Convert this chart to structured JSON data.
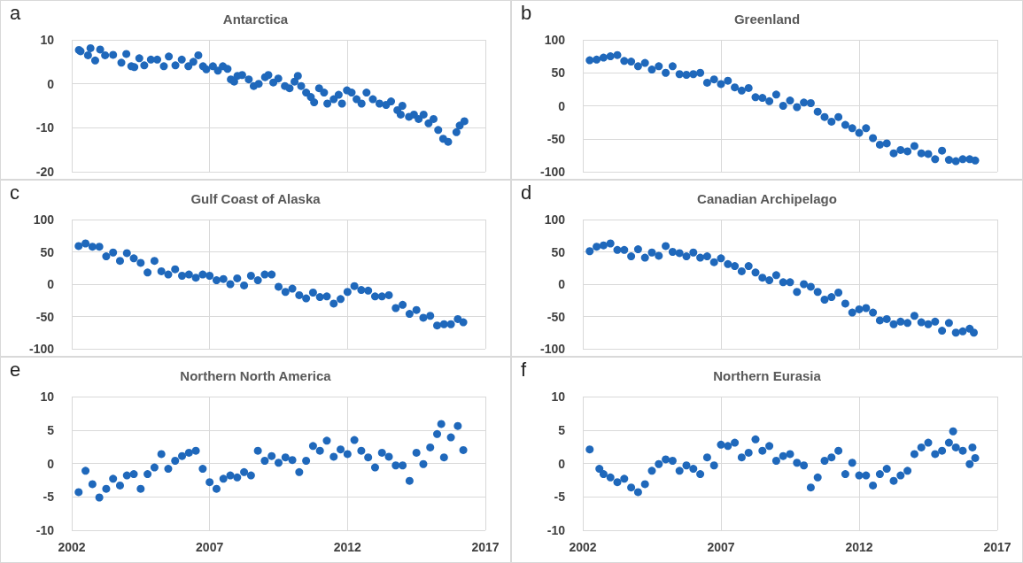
{
  "chart_data": [
    {
      "type": "scatter",
      "title": "Antarctica",
      "annotations": [
        "a"
      ],
      "marker": "circle",
      "grid": true,
      "tick_labels": "y",
      "xlim": [
        2002,
        2017
      ],
      "xticks": [
        2002,
        2007,
        2012,
        2017
      ],
      "ylim": [
        -20,
        10
      ],
      "yticks": [
        -20,
        -10,
        0,
        10
      ],
      "x": [
        2002.26,
        2002.32,
        2002.59,
        2002.68,
        2002.85,
        2003.03,
        2003.21,
        2003.5,
        2003.8,
        2003.98,
        2004.16,
        2004.27,
        2004.45,
        2004.63,
        2004.87,
        2005.1,
        2005.34,
        2005.52,
        2005.76,
        2005.99,
        2006.23,
        2006.41,
        2006.59,
        2006.76,
        2006.88,
        2007.12,
        2007.3,
        2007.48,
        2007.65,
        2007.77,
        2007.89,
        2008.01,
        2008.18,
        2008.42,
        2008.6,
        2008.78,
        2009.01,
        2009.13,
        2009.31,
        2009.49,
        2009.73,
        2009.9,
        2010.08,
        2010.2,
        2010.32,
        2010.5,
        2010.67,
        2010.79,
        2010.97,
        2011.15,
        2011.27,
        2011.5,
        2011.68,
        2011.8,
        2011.98,
        2012.15,
        2012.33,
        2012.51,
        2012.69,
        2012.92,
        2013.16,
        2013.4,
        2013.58,
        2013.81,
        2013.93,
        2013.99,
        2014.23,
        2014.41,
        2014.58,
        2014.76,
        2014.94,
        2015.12,
        2015.29,
        2015.47,
        2015.65,
        2015.95,
        2016.07,
        2016.24
      ],
      "series": [
        {
          "color": "#1f68bb",
          "values": [
            7.7,
            7.4,
            6.5,
            8.1,
            5.3,
            7.8,
            6.5,
            6.6,
            4.8,
            6.8,
            4.0,
            3.8,
            5.8,
            4.2,
            5.5,
            5.5,
            4.0,
            6.2,
            4.2,
            5.5,
            4.0,
            5.0,
            6.5,
            4.0,
            3.3,
            4.0,
            3.0,
            4.0,
            3.4,
            1.0,
            0.5,
            1.8,
            2.0,
            1.0,
            -0.5,
            0,
            1.5,
            2.0,
            0.3,
            1.2,
            -0.5,
            -1.0,
            0.5,
            1.8,
            -0.5,
            -2.0,
            -3.0,
            -4.2,
            -1.0,
            -2.0,
            -4.5,
            -3.5,
            -2.5,
            -4.5,
            -1.5,
            -2.0,
            -3.5,
            -4.5,
            -2.0,
            -3.5,
            -4.5,
            -4.8,
            -4.0,
            -6.0,
            -7.0,
            -5.0,
            -7.5,
            -7.0,
            -8.0,
            -7.0,
            -9.0,
            -8.0,
            -10.5,
            -12.5,
            -13.2,
            -11.0,
            -9.5,
            -8.5
          ]
        }
      ]
    },
    {
      "type": "scatter",
      "title": "Greenland",
      "annotations": [
        "b"
      ],
      "marker": "circle",
      "grid": true,
      "tick_labels": "y",
      "xlim": [
        2002,
        2017
      ],
      "xticks": [
        2002,
        2007,
        2012,
        2017
      ],
      "ylim": [
        -100,
        100
      ],
      "yticks": [
        -100,
        -50,
        0,
        50,
        100
      ],
      "x": [
        2002.25,
        2002.5,
        2002.75,
        2003,
        2003.25,
        2003.5,
        2003.75,
        2004,
        2004.25,
        2004.5,
        2004.75,
        2005,
        2005.25,
        2005.5,
        2005.75,
        2006,
        2006.25,
        2006.5,
        2006.75,
        2007,
        2007.25,
        2007.5,
        2007.75,
        2008,
        2008.25,
        2008.5,
        2008.75,
        2009,
        2009.25,
        2009.5,
        2009.75,
        2010,
        2010.25,
        2010.5,
        2010.75,
        2011,
        2011.25,
        2011.5,
        2011.75,
        2012,
        2012.25,
        2012.5,
        2012.75,
        2013,
        2013.25,
        2013.5,
        2013.75,
        2014,
        2014.25,
        2014.5,
        2014.75,
        2015,
        2015.25,
        2015.5,
        2015.75,
        2016,
        2016.2
      ],
      "series": [
        {
          "color": "#1f68bb",
          "values": [
            69,
            70,
            73,
            75,
            77,
            68,
            67,
            60,
            65,
            55,
            60,
            50,
            60,
            48,
            47,
            48,
            50,
            35,
            40,
            33,
            38,
            28,
            23,
            27,
            13,
            12,
            7,
            17,
            0,
            8,
            -2,
            5,
            4,
            -9,
            -17,
            -24,
            -17,
            -29,
            -34,
            -41,
            -34,
            -49,
            -59,
            -57,
            -72,
            -67,
            -69,
            -61,
            -72,
            -73,
            -81,
            -68,
            -82,
            -84,
            -81,
            -81,
            -83
          ]
        }
      ]
    },
    {
      "type": "scatter",
      "title": "Gulf Coast of Alaska",
      "annotations": [
        "c"
      ],
      "marker": "circle",
      "grid": true,
      "tick_labels": "y",
      "xlim": [
        2002,
        2017
      ],
      "xticks": [
        2002,
        2007,
        2012,
        2017
      ],
      "ylim": [
        -100,
        100
      ],
      "yticks": [
        -100,
        -50,
        0,
        50,
        100
      ],
      "x": [
        2002.25,
        2002.5,
        2002.75,
        2003,
        2003.25,
        2003.5,
        2003.75,
        2004,
        2004.25,
        2004.5,
        2004.75,
        2005,
        2005.25,
        2005.5,
        2005.75,
        2006,
        2006.25,
        2006.5,
        2006.75,
        2007,
        2007.25,
        2007.5,
        2007.75,
        2008,
        2008.25,
        2008.5,
        2008.75,
        2009,
        2009.25,
        2009.5,
        2009.75,
        2010,
        2010.25,
        2010.5,
        2010.75,
        2011,
        2011.25,
        2011.5,
        2011.75,
        2012,
        2012.25,
        2012.5,
        2012.75,
        2013,
        2013.25,
        2013.5,
        2013.75,
        2014,
        2014.25,
        2014.5,
        2014.75,
        2015,
        2015.25,
        2015.5,
        2015.75,
        2016,
        2016.2
      ],
      "series": [
        {
          "color": "#1f68bb",
          "values": [
            59,
            63,
            58,
            58,
            43,
            49,
            36,
            48,
            40,
            33,
            18,
            36,
            20,
            15,
            23,
            13,
            15,
            10,
            15,
            13,
            6,
            8,
            0,
            9,
            -2,
            13,
            6,
            15,
            15,
            -4,
            -12,
            -7,
            -17,
            -22,
            -13,
            -20,
            -19,
            -30,
            -23,
            -12,
            -3,
            -9,
            -10,
            -19,
            -19,
            -17,
            -37,
            -32,
            -46,
            -40,
            -52,
            -49,
            -64,
            -62,
            -62,
            -54,
            -59
          ]
        }
      ]
    },
    {
      "type": "scatter",
      "title": "Canadian Archipelago",
      "annotations": [
        "d"
      ],
      "marker": "circle",
      "grid": true,
      "tick_labels": "y",
      "xlim": [
        2002,
        2017
      ],
      "xticks": [
        2002,
        2007,
        2012,
        2017
      ],
      "ylim": [
        -100,
        100
      ],
      "yticks": [
        -100,
        -50,
        0,
        50,
        100
      ],
      "x": [
        2002.25,
        2002.5,
        2002.75,
        2003,
        2003.25,
        2003.5,
        2003.75,
        2004,
        2004.25,
        2004.5,
        2004.75,
        2005,
        2005.25,
        2005.5,
        2005.75,
        2006,
        2006.25,
        2006.5,
        2006.75,
        2007,
        2007.25,
        2007.5,
        2007.75,
        2008,
        2008.25,
        2008.5,
        2008.75,
        2009,
        2009.25,
        2009.5,
        2009.75,
        2010,
        2010.25,
        2010.5,
        2010.75,
        2011,
        2011.25,
        2011.5,
        2011.75,
        2012,
        2012.25,
        2012.5,
        2012.75,
        2013,
        2013.25,
        2013.5,
        2013.75,
        2014,
        2014.25,
        2014.5,
        2014.75,
        2015,
        2015.25,
        2015.5,
        2015.75,
        2016,
        2016.15
      ],
      "series": [
        {
          "color": "#1f68bb",
          "values": [
            51,
            58,
            60,
            63,
            53,
            53,
            43,
            54,
            41,
            49,
            44,
            59,
            50,
            48,
            43,
            49,
            41,
            43,
            34,
            40,
            31,
            28,
            20,
            28,
            18,
            10,
            6,
            14,
            3,
            3,
            -12,
            0,
            -4,
            -12,
            -24,
            -20,
            -13,
            -30,
            -44,
            -39,
            -37,
            -44,
            -56,
            -54,
            -62,
            -58,
            -60,
            -49,
            -59,
            -62,
            -58,
            -72,
            -60,
            -75,
            -73,
            -69,
            -75
          ]
        }
      ]
    },
    {
      "type": "scatter",
      "title": "Northern North America",
      "annotations": [
        "e"
      ],
      "marker": "circle",
      "grid": true,
      "xlim": [
        2002,
        2017
      ],
      "xticks": [
        2002,
        2007,
        2012,
        2017
      ],
      "ylim": [
        -10,
        10
      ],
      "yticks": [
        -10,
        -5,
        0,
        5,
        10
      ],
      "x": [
        2002.25,
        2002.5,
        2002.75,
        2003,
        2003.25,
        2003.5,
        2003.75,
        2004,
        2004.25,
        2004.5,
        2004.75,
        2005,
        2005.25,
        2005.5,
        2005.75,
        2006,
        2006.25,
        2006.5,
        2006.75,
        2007,
        2007.25,
        2007.5,
        2007.75,
        2008,
        2008.25,
        2008.5,
        2008.75,
        2009,
        2009.25,
        2009.5,
        2009.75,
        2010,
        2010.25,
        2010.5,
        2010.75,
        2011,
        2011.25,
        2011.5,
        2011.75,
        2012,
        2012.25,
        2012.5,
        2012.75,
        2013,
        2013.25,
        2013.5,
        2013.75,
        2014,
        2014.25,
        2014.5,
        2014.75,
        2015,
        2015.25,
        2015.4,
        2015.5,
        2015.75,
        2016,
        2016.2
      ],
      "series": [
        {
          "color": "#1f68bb",
          "values": [
            -4.3,
            -1.1,
            -3.1,
            -5.1,
            -3.8,
            -2.3,
            -3.3,
            -1.8,
            -1.6,
            -3.8,
            -1.6,
            -0.6,
            1.4,
            -0.8,
            0.4,
            1.1,
            1.6,
            1.9,
            -0.8,
            -2.8,
            -3.8,
            -2.3,
            -1.8,
            -2.1,
            -1.3,
            -1.8,
            1.9,
            0.4,
            1.1,
            0.1,
            0.9,
            0.5,
            -1.3,
            0.4,
            2.6,
            1.9,
            3.4,
            1.0,
            2.1,
            1.4,
            3.5,
            1.9,
            0.9,
            -0.6,
            1.6,
            1.0,
            -0.3,
            -0.3,
            -2.6,
            1.6,
            -0.1,
            2.4,
            4.4,
            5.9,
            0.9,
            3.9,
            5.6,
            2.0
          ]
        }
      ]
    },
    {
      "type": "scatter",
      "title": "Northern Eurasia",
      "annotations": [
        "f"
      ],
      "marker": "circle",
      "grid": true,
      "xlim": [
        2002,
        2017
      ],
      "xticks": [
        2002,
        2007,
        2012,
        2017
      ],
      "ylim": [
        -10,
        10
      ],
      "yticks": [
        -10,
        -5,
        0,
        5,
        10
      ],
      "x": [
        2002.25,
        2002.6,
        2002.75,
        2003,
        2003.25,
        2003.5,
        2003.75,
        2004,
        2004.25,
        2004.5,
        2004.75,
        2005,
        2005.25,
        2005.5,
        2005.75,
        2006,
        2006.25,
        2006.5,
        2006.75,
        2007,
        2007.25,
        2007.5,
        2007.75,
        2008,
        2008.25,
        2008.5,
        2008.75,
        2009,
        2009.25,
        2009.5,
        2009.75,
        2010,
        2010.25,
        2010.5,
        2010.75,
        2011,
        2011.25,
        2011.5,
        2011.75,
        2012,
        2012.25,
        2012.5,
        2012.75,
        2013,
        2013.25,
        2013.5,
        2013.75,
        2014,
        2014.25,
        2014.5,
        2014.75,
        2015,
        2015.25,
        2015.4,
        2015.5,
        2015.75,
        2016,
        2016.1,
        2016.2
      ],
      "series": [
        {
          "color": "#1f68bb",
          "values": [
            2.1,
            -0.8,
            -1.6,
            -2.1,
            -2.8,
            -2.3,
            -3.6,
            -4.3,
            -3.1,
            -1.1,
            -0.1,
            0.6,
            0.4,
            -1.1,
            -0.3,
            -0.8,
            -1.6,
            0.9,
            -0.3,
            2.8,
            2.6,
            3.1,
            0.9,
            1.6,
            3.6,
            1.9,
            2.6,
            0.4,
            1.1,
            1.4,
            0.1,
            -0.3,
            -3.6,
            -2.1,
            0.4,
            0.9,
            1.9,
            -1.6,
            0.1,
            -1.8,
            -1.8,
            -3.3,
            -1.6,
            -0.8,
            -2.6,
            -1.8,
            -1.1,
            1.4,
            2.4,
            3.1,
            1.4,
            1.9,
            3.1,
            4.8,
            2.4,
            1.9,
            -0.1,
            2.4,
            0.8
          ]
        }
      ]
    }
  ]
}
